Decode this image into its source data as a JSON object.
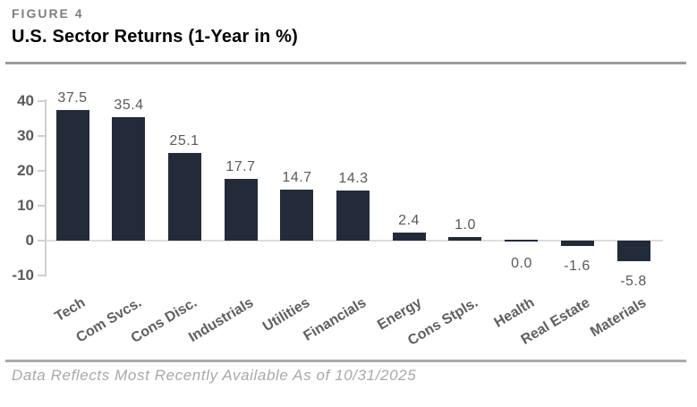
{
  "header": {
    "figure_label": "FIGURE 4",
    "title": "U.S. Sector Returns (1-Year in %)"
  },
  "chart_data": {
    "type": "bar",
    "title": "U.S. Sector Returns (1-Year in %)",
    "categories": [
      "Tech",
      "Com Svcs.",
      "Cons Disc.",
      "Industrials",
      "Utilities",
      "Financials",
      "Energy",
      "Cons Stpls.",
      "Health",
      "Real Estate",
      "Materials"
    ],
    "values": [
      37.5,
      35.4,
      25.1,
      17.7,
      14.7,
      14.3,
      2.4,
      1.0,
      0.0,
      -1.6,
      -5.8
    ],
    "value_labels": [
      "37.5",
      "35.4",
      "25.1",
      "17.7",
      "14.7",
      "14.3",
      "2.4",
      "1.0",
      "0.0",
      "-1.6",
      "-5.8"
    ],
    "yticks": [
      40,
      30,
      20,
      10,
      0,
      -10
    ],
    "ylim": [
      -10,
      40
    ],
    "xlabel": "",
    "ylabel": "",
    "grid": false,
    "legend": "none",
    "x_tick_rotation_deg": -31,
    "bar_color": "#232B3A"
  },
  "footer": {
    "note": "Data Reflects Most Recently Available As of 10/31/2025"
  },
  "colors": {
    "bar": "#232B3A",
    "figure_label": "#7F7F7F",
    "title": "#000000",
    "tick_label": "#595959",
    "value_label": "#595959",
    "x_label": "#5F5F5F",
    "axis_line": "#CFCFCF",
    "zero_line": "#DCDCDC",
    "title_divider": "#9C9C9C",
    "footer_divider": "#ABABAB",
    "footer_text": "#A9A9A9"
  }
}
